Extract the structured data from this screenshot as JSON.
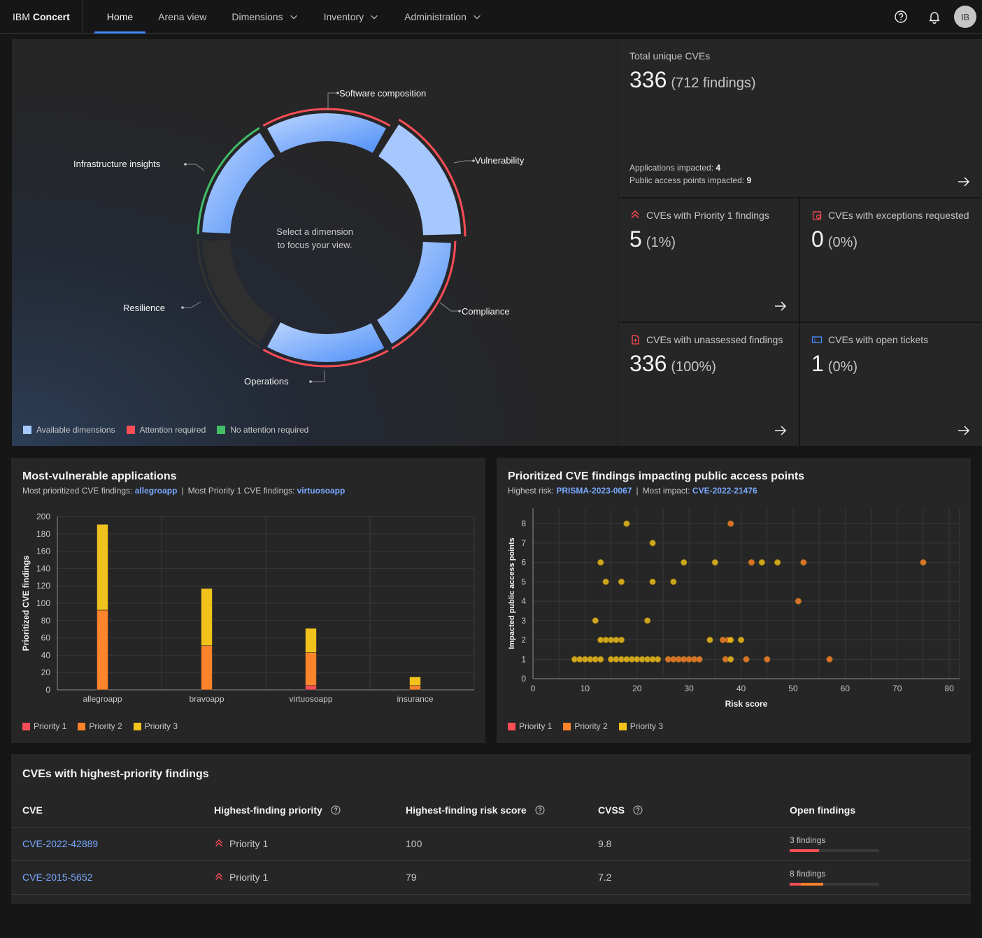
{
  "header": {
    "brand_light": "IBM",
    "brand_bold": "Concert",
    "nav": [
      "Home",
      "Arena view",
      "Dimensions",
      "Inventory",
      "Administration"
    ],
    "avatar": "IB",
    "icons": [
      "help-icon",
      "notification-icon"
    ]
  },
  "donut": {
    "center_line1": "Select a dimension",
    "center_line2": "to focus your view.",
    "segments": [
      {
        "label": "Software composition",
        "status": "attention"
      },
      {
        "label": "Vulnerability",
        "status": "attention"
      },
      {
        "label": "Compliance",
        "status": "attention"
      },
      {
        "label": "Operations",
        "status": "attention"
      },
      {
        "label": "Resilience",
        "status": "unavailable"
      },
      {
        "label": "Infrastructure insights",
        "status": "no-attention"
      }
    ],
    "legend": [
      "Available dimensions",
      "Attention required",
      "No attention required"
    ],
    "colors": {
      "available": "#a6c8ff",
      "attention": "#fa4d56",
      "no_attention": "#42be65",
      "unavailable": "#393939"
    }
  },
  "tiles": {
    "total": {
      "label": "Total unique CVEs",
      "value": "336",
      "paren": "(712 findings)",
      "apps_label": "Applications impacted:",
      "apps_value": "4",
      "pap_label": "Public access points impacted:",
      "pap_value": "9"
    },
    "p1": {
      "label": "CVEs with Priority 1 findings",
      "value": "5",
      "paren": "(1%)",
      "icon": "priority-icon"
    },
    "exceptions": {
      "label": "CVEs with exceptions requested",
      "value": "0",
      "paren": "(0%)",
      "icon": "exception-icon"
    },
    "unassessed": {
      "label": "CVEs with unassessed findings",
      "value": "336",
      "paren": "(100%)",
      "icon": "unassessed-icon"
    },
    "tickets": {
      "label": "CVEs with open tickets",
      "value": "1",
      "paren": "(0%)",
      "icon": "ticket-icon"
    }
  },
  "apps_chart": {
    "title": "Most-vulnerable applications",
    "sub1_label": "Most prioritized CVE findings:",
    "sub1_value": "allegroapp",
    "sub2_label": "Most Priority 1 CVE findings:",
    "sub2_value": "virtuosoapp",
    "legend": [
      "Priority 1",
      "Priority 2",
      "Priority 3"
    ]
  },
  "scatter_chart": {
    "title": "Prioritized CVE findings impacting public access points",
    "sub1_label": "Highest risk:",
    "sub1_value": "PRISMA-2023-0067",
    "sub2_label": "Most impact:",
    "sub2_value": "CVE-2022-21476",
    "legend": [
      "Priority 1",
      "Priority 2",
      "Priority 3"
    ]
  },
  "chart_data": [
    {
      "type": "bar",
      "stacked": true,
      "categories": [
        "allegroapp",
        "bravoapp",
        "virtuosoapp",
        "insurance"
      ],
      "series": [
        {
          "name": "Priority 1",
          "color": "#fa4d56",
          "values": [
            0,
            0,
            5,
            0
          ]
        },
        {
          "name": "Priority 2",
          "color": "#ff832b",
          "values": [
            92,
            51,
            38,
            5
          ]
        },
        {
          "name": "Priority 3",
          "color": "#f1c21b",
          "values": [
            99,
            66,
            28,
            10
          ]
        }
      ],
      "xlabel": "",
      "ylabel": "Prioritized CVE findings",
      "ylim": [
        0,
        200
      ],
      "yticks": [
        0,
        20,
        40,
        60,
        80,
        100,
        120,
        140,
        160,
        180,
        200
      ],
      "grid": true,
      "legend": "bottom-left"
    },
    {
      "type": "scatter",
      "xlabel": "Risk score",
      "ylabel": "Impacted public access points",
      "xlim": [
        0,
        82
      ],
      "ylim": [
        0,
        8.8
      ],
      "xticks": [
        0,
        10,
        20,
        30,
        40,
        50,
        60,
        70,
        80
      ],
      "yticks": [
        0,
        1,
        2,
        3,
        4,
        5,
        6,
        7,
        8
      ],
      "grid": true,
      "legend": "bottom-left",
      "series": [
        {
          "name": "Priority 2",
          "color": "#ff832b",
          "points": [
            [
              38,
              8
            ],
            [
              42,
              6
            ],
            [
              52,
              6
            ],
            [
              75,
              6
            ],
            [
              51,
              4
            ],
            [
              36.5,
              2
            ],
            [
              37.5,
              2
            ],
            [
              26,
              1
            ],
            [
              27,
              1
            ],
            [
              28,
              1
            ],
            [
              29,
              1
            ],
            [
              30,
              1
            ],
            [
              31,
              1
            ],
            [
              32,
              1
            ],
            [
              37,
              1
            ],
            [
              41,
              1
            ],
            [
              45,
              1
            ],
            [
              57,
              1
            ]
          ]
        },
        {
          "name": "Priority 3",
          "color": "#f1c21b",
          "points": [
            [
              18,
              8
            ],
            [
              23,
              7
            ],
            [
              13,
              6
            ],
            [
              29,
              6
            ],
            [
              35,
              6
            ],
            [
              44,
              6
            ],
            [
              47,
              6
            ],
            [
              14,
              5
            ],
            [
              17,
              5
            ],
            [
              23,
              5
            ],
            [
              27,
              5
            ],
            [
              12,
              3
            ],
            [
              22,
              3
            ],
            [
              13,
              2
            ],
            [
              14,
              2
            ],
            [
              15,
              2
            ],
            [
              16,
              2
            ],
            [
              17,
              2
            ],
            [
              34,
              2
            ],
            [
              38,
              2
            ],
            [
              40,
              2
            ],
            [
              8,
              1
            ],
            [
              9,
              1
            ],
            [
              10,
              1
            ],
            [
              11,
              1
            ],
            [
              12,
              1
            ],
            [
              13,
              1
            ],
            [
              15,
              1
            ],
            [
              16,
              1
            ],
            [
              17,
              1
            ],
            [
              18,
              1
            ],
            [
              19,
              1
            ],
            [
              20,
              1
            ],
            [
              21,
              1
            ],
            [
              22,
              1
            ],
            [
              23,
              1
            ],
            [
              24,
              1
            ],
            [
              38,
              1
            ]
          ]
        }
      ]
    }
  ],
  "table": {
    "title": "CVEs with highest-priority findings",
    "headers": [
      "CVE",
      "Highest-finding priority",
      "Highest-finding risk score",
      "CVSS",
      "Open findings"
    ],
    "rows": [
      {
        "cve": "CVE-2022-42889",
        "priority": "Priority 1",
        "risk": "100",
        "cvss": "9.8",
        "findings": "3 findings",
        "p1_fraction": 0.33,
        "p2_fraction": 0.0
      },
      {
        "cve": "CVE-2015-5652",
        "priority": "Priority 1",
        "risk": "79",
        "cvss": "7.2",
        "findings": "8 findings",
        "p1_fraction": 0.125,
        "p2_fraction": 0.25
      }
    ]
  }
}
